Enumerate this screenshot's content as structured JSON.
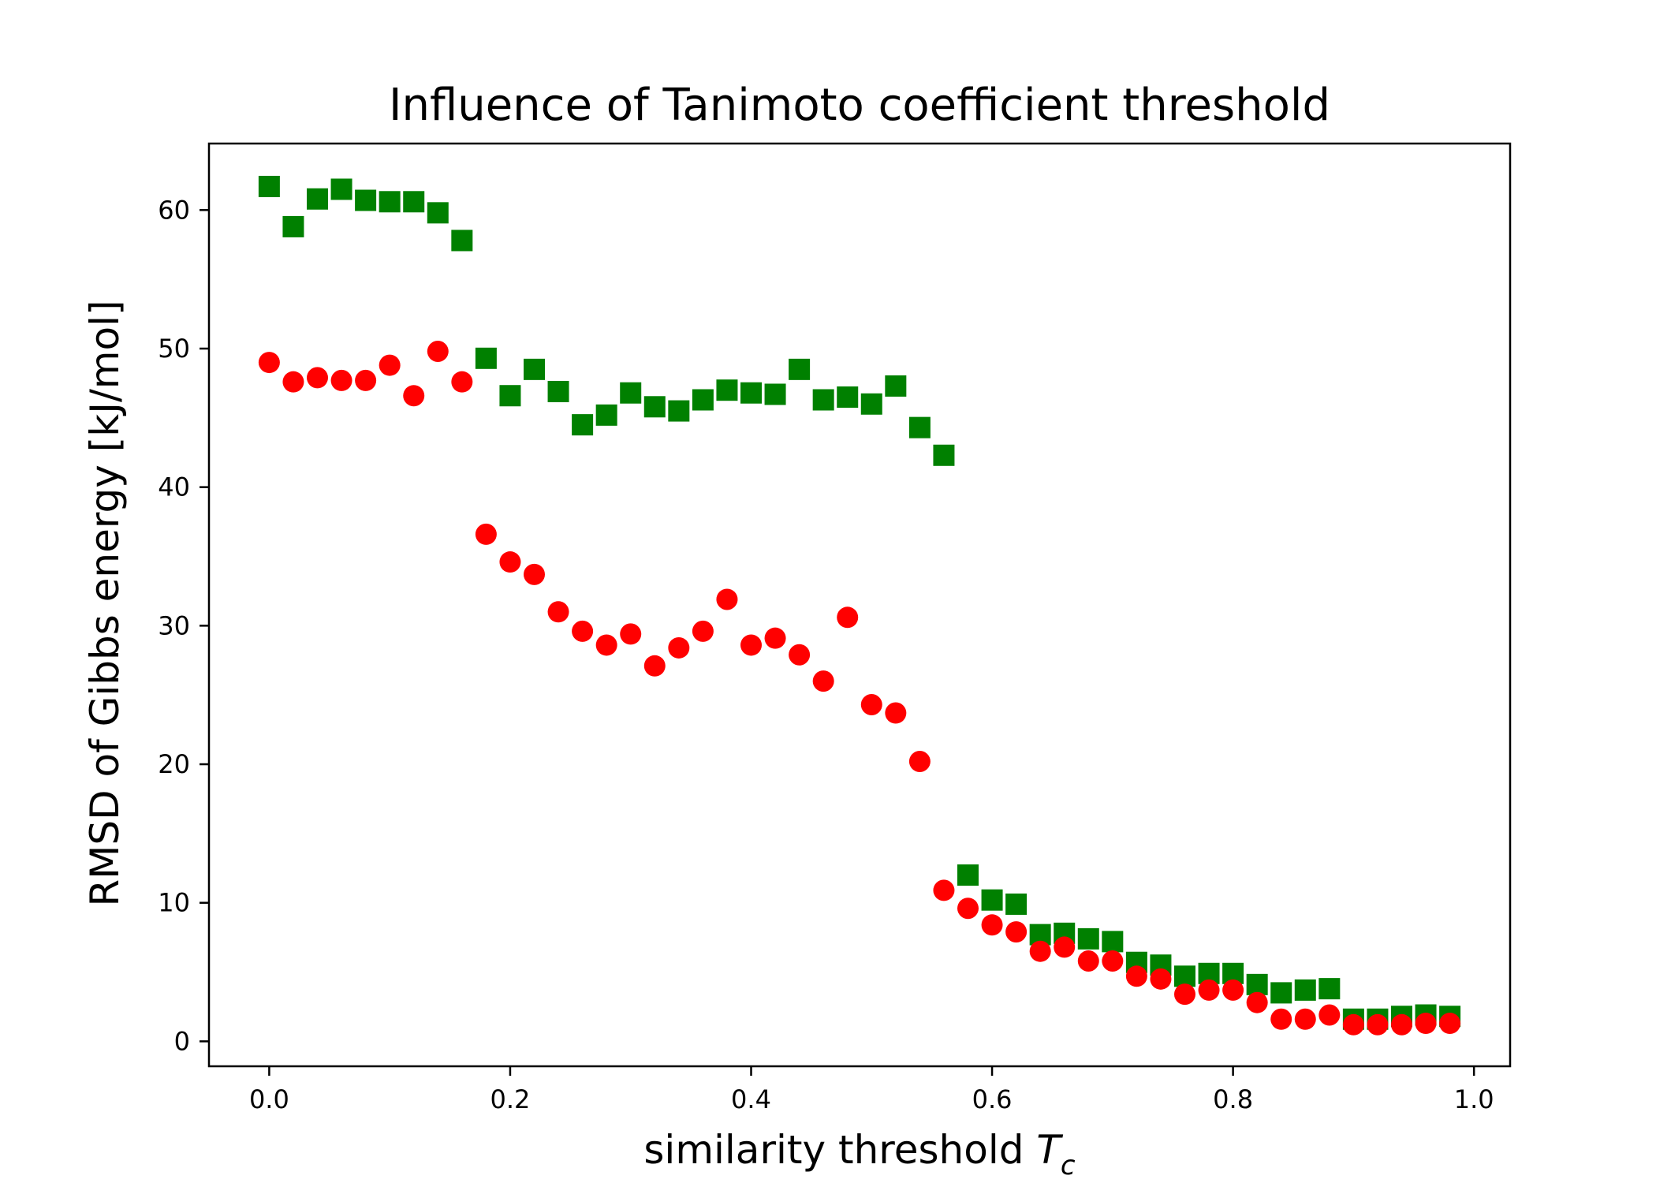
{
  "chart_data": {
    "type": "scatter",
    "title": "Influence of Tanimoto coefficient threshold",
    "xlabel": "similarity threshold",
    "xlabel_symbol": "T",
    "xlabel_subscript": "c",
    "ylabel": "RMSD of Gibbs energy [kJ/mol]",
    "xlim": [
      -0.05,
      1.03
    ],
    "ylim": [
      -1.8,
      64.8
    ],
    "xticks": [
      0.0,
      0.2,
      0.4,
      0.6,
      0.8,
      1.0
    ],
    "xtick_labels": [
      "0.0",
      "0.2",
      "0.4",
      "0.6",
      "0.8",
      "1.0"
    ],
    "yticks": [
      0,
      10,
      20,
      30,
      40,
      50,
      60
    ],
    "ytick_labels": [
      "0",
      "10",
      "20",
      "30",
      "40",
      "50",
      "60"
    ],
    "grid": false,
    "legend": "none",
    "series": [
      {
        "marker": "square",
        "color": "#008000",
        "x": [
          0.0,
          0.02,
          0.04,
          0.06,
          0.08,
          0.1,
          0.12,
          0.14,
          0.16,
          0.18,
          0.2,
          0.22,
          0.24,
          0.26,
          0.28,
          0.3,
          0.32,
          0.34,
          0.36,
          0.38,
          0.4,
          0.42,
          0.44,
          0.46,
          0.48,
          0.5,
          0.52,
          0.54,
          0.56,
          0.58,
          0.6,
          0.62,
          0.64,
          0.66,
          0.68,
          0.7,
          0.72,
          0.74,
          0.76,
          0.78,
          0.8,
          0.82,
          0.84,
          0.86,
          0.88,
          0.9,
          0.92,
          0.94,
          0.96,
          0.98
        ],
        "y": [
          61.7,
          58.8,
          60.8,
          61.5,
          60.7,
          60.6,
          60.6,
          59.8,
          57.8,
          49.3,
          46.6,
          48.5,
          46.9,
          44.5,
          45.2,
          46.8,
          45.8,
          45.5,
          46.3,
          47.0,
          46.8,
          46.7,
          48.5,
          46.3,
          46.5,
          46.0,
          47.3,
          44.3,
          42.3,
          12.0,
          10.2,
          9.9,
          7.7,
          7.8,
          7.4,
          7.2,
          5.7,
          5.5,
          4.7,
          4.9,
          4.9,
          4.1,
          3.5,
          3.7,
          3.8,
          1.6,
          1.6,
          1.8,
          1.9,
          1.8
        ]
      },
      {
        "marker": "circle",
        "color": "#ff0000",
        "x": [
          0.0,
          0.02,
          0.04,
          0.06,
          0.08,
          0.1,
          0.12,
          0.14,
          0.16,
          0.18,
          0.2,
          0.22,
          0.24,
          0.26,
          0.28,
          0.3,
          0.32,
          0.34,
          0.36,
          0.38,
          0.4,
          0.42,
          0.44,
          0.46,
          0.48,
          0.5,
          0.52,
          0.54,
          0.56,
          0.58,
          0.6,
          0.62,
          0.64,
          0.66,
          0.68,
          0.7,
          0.72,
          0.74,
          0.76,
          0.78,
          0.8,
          0.82,
          0.84,
          0.86,
          0.88,
          0.9,
          0.92,
          0.94,
          0.96,
          0.98
        ],
        "y": [
          49.0,
          47.6,
          47.9,
          47.7,
          47.7,
          48.8,
          46.6,
          49.8,
          47.6,
          36.6,
          34.6,
          33.7,
          31.0,
          29.6,
          28.6,
          29.4,
          27.1,
          28.4,
          29.6,
          31.9,
          28.6,
          29.1,
          27.9,
          26.0,
          30.6,
          24.3,
          23.7,
          20.2,
          10.9,
          9.6,
          8.4,
          7.9,
          6.5,
          6.8,
          5.8,
          5.8,
          4.7,
          4.5,
          3.4,
          3.7,
          3.7,
          2.8,
          1.6,
          1.6,
          1.9,
          1.2,
          1.2,
          1.2,
          1.3,
          1.3
        ]
      }
    ]
  }
}
